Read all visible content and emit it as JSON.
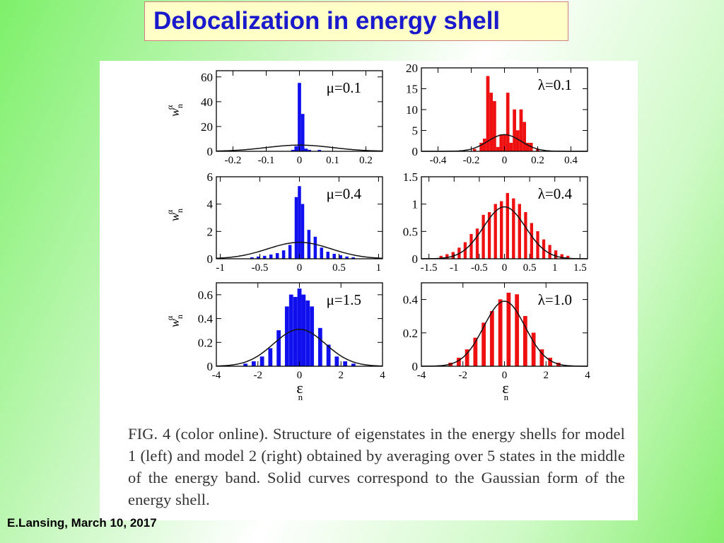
{
  "slide": {
    "title": "Delocalization in energy shell",
    "footer": "E.Lansing, March 10, 2017"
  },
  "figure": {
    "caption": "FIG. 4 (color online).  Structure of eigenstates in the energy shells for model 1 (left) and model 2 (right) obtained by averaging over 5 states in the middle of the energy band. Solid curves correspond to the Gaussian form of the energy shell.",
    "ylabel_main": "w",
    "ylabel_sub": "n",
    "ylabel_sup": "α",
    "xlabel_main": "ε",
    "xlabel_sub": "n"
  },
  "colors": {
    "model1": "#1010ee",
    "model2": "#ee1010",
    "curve": "#111111"
  },
  "chart_data": [
    {
      "type": "bar",
      "label": "μ=0.1",
      "color": "#1010ee",
      "xlim": [
        -0.25,
        0.25
      ],
      "ylim": [
        0,
        65
      ],
      "xticks": [
        -0.2,
        -0.1,
        0,
        0.1,
        0.2
      ],
      "xticklabels": [
        "-0.2",
        "-0.1",
        "0",
        "0.1",
        "0.2"
      ],
      "yticks": [
        0,
        20,
        40,
        60
      ],
      "yticklabels": [
        "0",
        "20",
        "40",
        "60"
      ],
      "bin_width": 0.01,
      "x": [
        -0.01,
        0.0,
        0.01,
        0.02,
        0.03,
        -0.02,
        0.06
      ],
      "y": [
        4,
        55,
        30,
        2,
        1,
        1,
        1
      ],
      "gaussian": {
        "amp": 5,
        "mean": 0,
        "sigma": 0.1
      }
    },
    {
      "type": "bar",
      "label": "λ=0.1",
      "color": "#ee1010",
      "xlim": [
        -0.5,
        0.5
      ],
      "ylim": [
        0,
        20
      ],
      "xticks": [
        -0.4,
        -0.2,
        0,
        0.2,
        0.4
      ],
      "xticklabels": [
        "-0.4",
        "-0.2",
        "0",
        "0.2",
        "0.4"
      ],
      "yticks": [
        0,
        5,
        10,
        15,
        20
      ],
      "yticklabels": [
        "0",
        "5",
        "10",
        "15",
        "20"
      ],
      "bin_width": 0.02,
      "x": [
        -0.18,
        -0.14,
        -0.12,
        -0.1,
        -0.08,
        -0.06,
        -0.04,
        -0.02,
        0.0,
        0.02,
        0.04,
        0.06,
        0.08,
        0.1,
        0.12,
        0.14,
        0.16,
        0.2
      ],
      "y": [
        0.5,
        2,
        3,
        18,
        14,
        12,
        1,
        4,
        4,
        14,
        2,
        10,
        5,
        10,
        7,
        2,
        2,
        0.5
      ],
      "gaussian": {
        "amp": 4,
        "mean": 0,
        "sigma": 0.1
      }
    },
    {
      "type": "bar",
      "label": "μ=0.4",
      "color": "#1010ee",
      "xlim": [
        -1.05,
        1.05
      ],
      "ylim": [
        0,
        6
      ],
      "xticks": [
        -1,
        -0.5,
        0,
        0.5,
        1
      ],
      "xticklabels": [
        "-1",
        "-0.5",
        "0",
        "0.5",
        "1"
      ],
      "yticks": [
        0,
        2,
        4,
        6
      ],
      "yticklabels": [
        "0",
        "2",
        "4",
        "6"
      ],
      "bin_width": 0.04,
      "x": [
        -0.6,
        -0.52,
        -0.44,
        -0.36,
        -0.28,
        -0.2,
        -0.12,
        -0.04,
        0.0,
        0.04,
        0.12,
        0.2,
        0.28,
        0.36,
        0.44,
        0.52,
        0.6,
        0.68
      ],
      "y": [
        0.1,
        0.15,
        0.2,
        0.3,
        0.4,
        0.6,
        1.0,
        4.5,
        5.3,
        4.0,
        2.1,
        1.6,
        0.8,
        0.5,
        0.35,
        0.25,
        0.15,
        0.1
      ],
      "gaussian": {
        "amp": 1.2,
        "mean": 0,
        "sigma": 0.4
      }
    },
    {
      "type": "bar",
      "label": "λ=0.4",
      "color": "#ee1010",
      "xlim": [
        -1.65,
        1.65
      ],
      "ylim": [
        0,
        1.5
      ],
      "xticks": [
        -1.5,
        -1,
        -0.5,
        0,
        0.5,
        1,
        1.5
      ],
      "xticklabels": [
        "-1.5",
        "-1",
        "-0.5",
        "0",
        "0.5",
        "1",
        "1.5"
      ],
      "yticks": [
        0,
        0.5,
        1,
        1.5
      ],
      "yticklabels": [
        "0",
        "0.5",
        "1",
        "1.5"
      ],
      "bin_width": 0.06,
      "x": [
        -1.26,
        -1.14,
        -1.02,
        -0.9,
        -0.78,
        -0.66,
        -0.54,
        -0.42,
        -0.3,
        -0.18,
        -0.06,
        0.06,
        0.18,
        0.3,
        0.42,
        0.54,
        0.66,
        0.78,
        0.9,
        1.02,
        1.14,
        1.26
      ],
      "y": [
        0.05,
        0.08,
        0.12,
        0.2,
        0.3,
        0.45,
        0.55,
        0.8,
        0.85,
        1.0,
        1.05,
        1.2,
        1.1,
        1.0,
        0.85,
        0.65,
        0.5,
        0.35,
        0.25,
        0.15,
        0.08,
        0.05
      ],
      "gaussian": {
        "amp": 0.95,
        "mean": 0,
        "sigma": 0.42
      }
    },
    {
      "type": "bar",
      "label": "μ=1.5",
      "color": "#1010ee",
      "xlim": [
        -4,
        4
      ],
      "ylim": [
        0,
        0.7
      ],
      "xticks": [
        -4,
        -2,
        0,
        2,
        4
      ],
      "xticklabels": [
        "-4",
        "-2",
        "0",
        "2",
        "4"
      ],
      "yticks": [
        0,
        0.2,
        0.4,
        0.6
      ],
      "yticklabels": [
        "0",
        "0.2",
        "0.4",
        "0.6"
      ],
      "bin_width": 0.2,
      "x": [
        -2.6,
        -2.2,
        -1.8,
        -1.4,
        -1.0,
        -0.6,
        -0.4,
        -0.2,
        0.0,
        0.2,
        0.4,
        0.6,
        1.0,
        1.4,
        1.8,
        2.2,
        2.6
      ],
      "y": [
        0.02,
        0.04,
        0.08,
        0.15,
        0.3,
        0.5,
        0.6,
        0.58,
        0.65,
        0.6,
        0.55,
        0.5,
        0.32,
        0.18,
        0.08,
        0.04,
        0.02
      ],
      "gaussian": {
        "amp": 0.31,
        "mean": 0,
        "sigma": 1.25
      }
    },
    {
      "type": "bar",
      "label": "λ=1.0",
      "color": "#ee1010",
      "xlim": [
        -4,
        4
      ],
      "ylim": [
        0,
        0.5
      ],
      "xticks": [
        -4,
        -2,
        0,
        2,
        4
      ],
      "xticklabels": [
        "-4",
        "-2",
        "0",
        "2",
        "4"
      ],
      "yticks": [
        0,
        0.2,
        0.4
      ],
      "yticklabels": [
        "0",
        "0.2",
        "0.4"
      ],
      "bin_width": 0.2,
      "x": [
        -2.6,
        -2.2,
        -1.8,
        -1.4,
        -1.0,
        -0.6,
        -0.2,
        0.2,
        0.6,
        1.0,
        1.4,
        1.8,
        2.2,
        2.6
      ],
      "y": [
        0.02,
        0.05,
        0.1,
        0.17,
        0.26,
        0.33,
        0.4,
        0.44,
        0.43,
        0.3,
        0.2,
        0.1,
        0.05,
        0.02
      ],
      "gaussian": {
        "amp": 0.39,
        "mean": 0,
        "sigma": 1.0
      }
    }
  ]
}
